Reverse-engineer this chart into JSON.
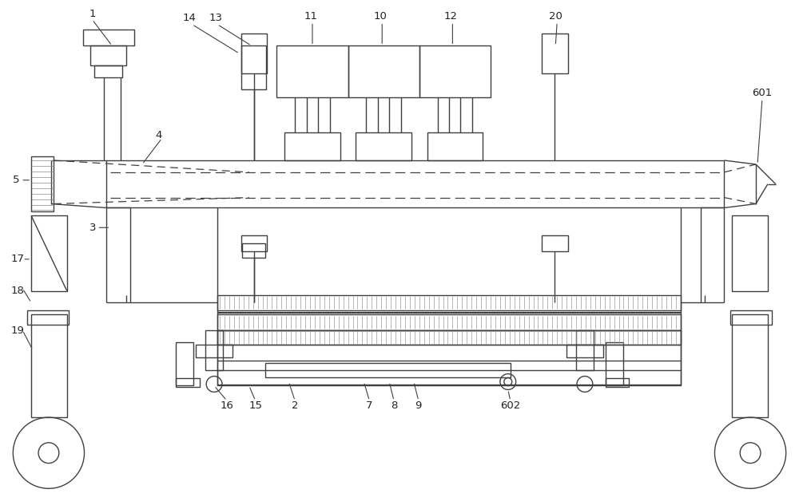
{
  "bg_color": "#ffffff",
  "lc": "#404040",
  "lw": 1.0,
  "fig_w": 10.0,
  "fig_h": 6.28,
  "dpi": 100
}
